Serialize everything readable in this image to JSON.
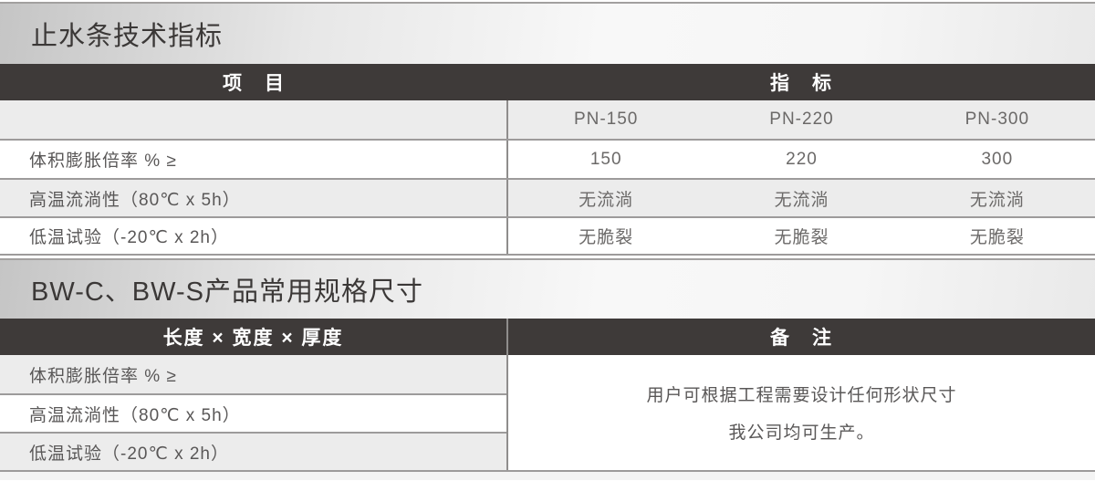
{
  "section1": {
    "title": "止水条技术指标",
    "table": {
      "header_left": "项　目",
      "header_right": "指　标",
      "col_headers": [
        "PN-150",
        "PN-220",
        "PN-300"
      ],
      "rows": [
        {
          "label": "体积膨胀倍率 % ≥",
          "values": [
            "150",
            "220",
            "300"
          ]
        },
        {
          "label": "高温流淌性（80℃ x 5h）",
          "values": [
            "无流淌",
            "无流淌",
            "无流淌"
          ]
        },
        {
          "label": "低温试验（-20℃ x 2h）",
          "values": [
            "无脆裂",
            "无脆裂",
            "无脆裂"
          ]
        }
      ]
    }
  },
  "section2": {
    "title": "BW-C、BW-S产品常用规格尺寸",
    "table": {
      "header_left": "长度 × 宽度 × 厚度",
      "header_right": "备　注",
      "row_labels": [
        "体积膨胀倍率 % ≥",
        "高温流淌性（80℃ x 5h）",
        "低温试验（-20℃ x 2h）"
      ],
      "remark_line1": "用户可根据工程需要设计任何形状尺寸",
      "remark_line2": "我公司均可生产。"
    }
  },
  "colors": {
    "header_bg": "#3e3a39",
    "header_text": "#ffffff",
    "row_alt_bg": "#ececec",
    "row_bg": "#ffffff",
    "border": "#9d9b9b",
    "body_text": "#595757"
  }
}
